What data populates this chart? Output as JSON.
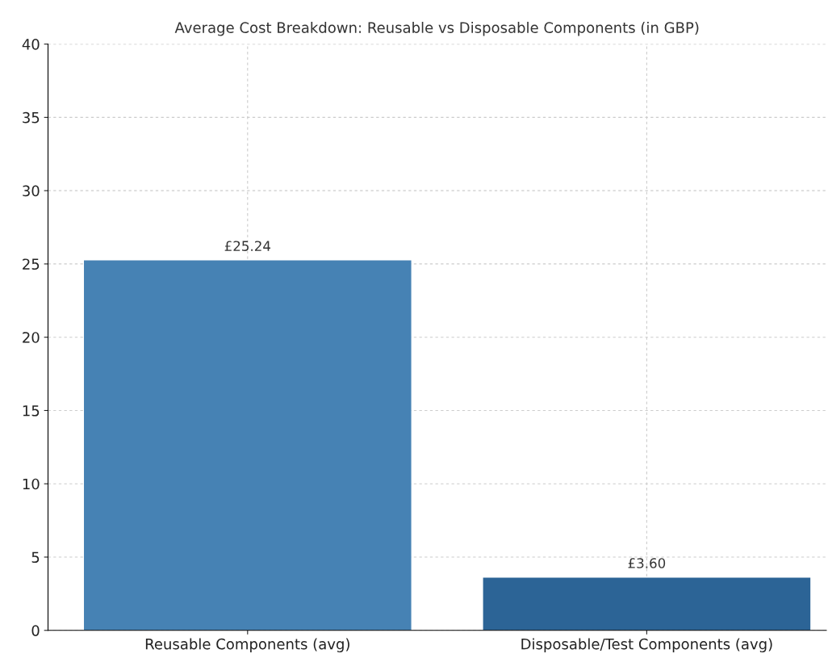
{
  "chart_data": {
    "type": "bar",
    "title": "Average Cost Breakdown: Reusable vs Disposable Components (in GBP)",
    "categories": [
      "Reusable Components (avg)",
      "Disposable/Test Components (avg)"
    ],
    "values": [
      25.24,
      3.6
    ],
    "colors": [
      "#4682b4",
      "#2c6496"
    ],
    "value_labels": [
      "£25.24",
      "£3.60"
    ],
    "ylim": [
      0,
      40
    ],
    "yticks": [
      0,
      5,
      10,
      15,
      20,
      25,
      30,
      35,
      40
    ],
    "grid": true
  }
}
